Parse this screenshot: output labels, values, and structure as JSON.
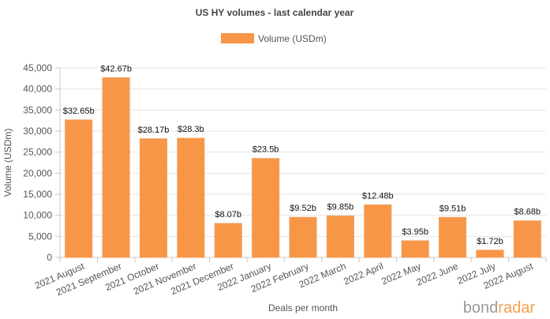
{
  "colors": {
    "bar": "#f79646",
    "bar_stroke": "#f0a060",
    "logo_gray": "#9b9b9b",
    "logo_orange": "#f7a04a"
  },
  "logo": {
    "part1": "bond",
    "part2": "radar"
  },
  "chart_data": {
    "type": "bar",
    "title": "US HY volumes - last calendar year",
    "xlabel": "Deals per month",
    "ylabel": "Volume (USDm)",
    "ylim": [
      0,
      45000
    ],
    "yticks": [
      "0",
      "5,000",
      "10,000",
      "15,000",
      "20,000",
      "25,000",
      "30,000",
      "35,000",
      "40,000",
      "45,000"
    ],
    "grid": true,
    "legend_position": "top",
    "categories": [
      "2021 August",
      "2021 September",
      "2021 October",
      "2021 November",
      "2021 December",
      "2022 January",
      "2022 February",
      "2022 March",
      "2022 April",
      "2022 May",
      "2022 June",
      "2022 July",
      "2022 August"
    ],
    "series": [
      {
        "name": "Volume (USDm)",
        "values": [
          32650,
          42670,
          28170,
          28300,
          8070,
          23500,
          9520,
          9850,
          12480,
          3950,
          9510,
          1720,
          8680
        ],
        "labels": [
          "$32.65b",
          "$42.67b",
          "$28.17b",
          "$28.3b",
          "$8.07b",
          "$23.5b",
          "$9.52b",
          "$9.85b",
          "$12.48b",
          "$3.95b",
          "$9.51b",
          "$1.72b",
          "$8.68b"
        ]
      }
    ]
  }
}
